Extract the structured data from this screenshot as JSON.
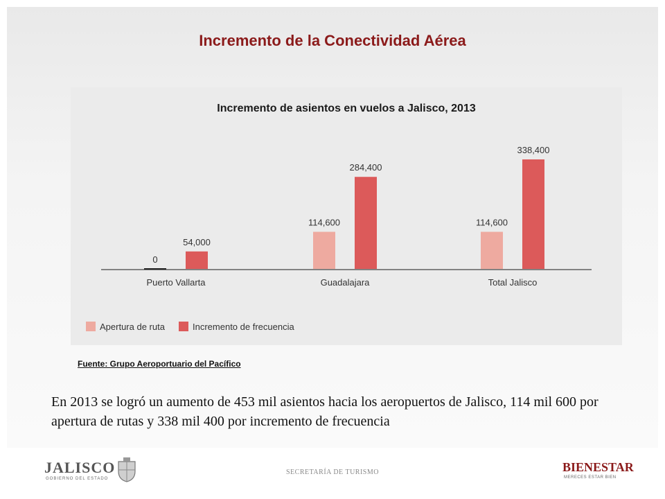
{
  "slide": {
    "title": "Incremento de la Conectividad Aérea",
    "source": "Fuente: Grupo Aeroportuario del Pacífico",
    "body_text": "En 2013 se logró un aumento de 453 mil asientos hacia los aeropuertos de Jalisco, 114 mil 600 por apertura de rutas y 338 mil 400 por incremento de frecuencia",
    "footer_center": "SECRETARÍA DE TURISMO",
    "logo_left_text": "JALISCO",
    "logo_left_sub": "GOBIERNO DEL ESTADO",
    "logo_right_text": "BIENESTAR",
    "logo_right_sub": "MERECES ESTAR BIEN"
  },
  "chart_data": {
    "type": "bar",
    "title": "Incremento de asientos en vuelos a Jalisco, 2013",
    "xlabel": "",
    "ylabel": "",
    "categories": [
      "Puerto Vallarta",
      "Guadalajara",
      "Total Jalisco"
    ],
    "series": [
      {
        "name": "Apertura de ruta",
        "values": [
          0,
          114600,
          114600
        ],
        "labels": [
          "0",
          "114,600",
          "114,600"
        ],
        "color": "#eeaaa0"
      },
      {
        "name": "Incremento de frecuencia",
        "values": [
          54000,
          284400,
          338400
        ],
        "labels": [
          "54,000",
          "284,400",
          "338,400"
        ],
        "color": "#dc5a5a"
      }
    ],
    "ylim": [
      0,
      338400
    ],
    "grid": false,
    "legend": "bottom-left"
  }
}
